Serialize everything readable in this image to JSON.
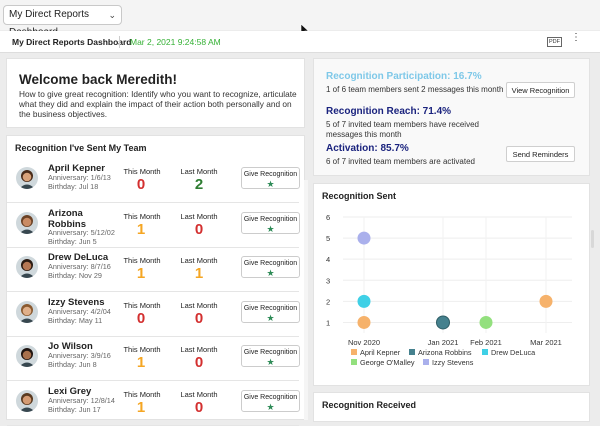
{
  "topbar": {
    "dashboard_select": "My Direct Reports Dashboard"
  },
  "subbar": {
    "title": "My Direct Reports Dashboard",
    "timestamp": "Mar 2, 2021 9:24:58 AM",
    "pdf_label": "PDF"
  },
  "welcome": {
    "title": "Welcome back Meredith!",
    "text": "How to give great recognition: Identify who you want to recognize, articulate what they did and explain the impact of their action both personally and on the business objectives."
  },
  "stats": {
    "participation": {
      "heading": "Recognition Participation: 16.7%",
      "desc": "1 of 6 team members sent 2 messages this month"
    },
    "reach": {
      "heading": "Recognition Reach: 71.4%",
      "desc": "5 of 7 invited team members have received messages this month"
    },
    "activation": {
      "heading": "Activation: 85.7%",
      "desc": "6 of 7 invited team members are activated"
    },
    "view_btn": "View Recognition",
    "remind_btn": "Send Reminders",
    "colors": {
      "participation": "#7ec8e8",
      "reach": "#1a237e",
      "activation": "#1a237e"
    }
  },
  "team": {
    "title": "Recognition I've Sent My Team",
    "this_month_label": "This Month",
    "last_month_label": "Last Month",
    "give_label": "Give Recognition",
    "members": [
      {
        "name": "April Kepner",
        "anniversary": "Anniversary: 1/6/13",
        "birthday": "Birthday: Jul 18",
        "this_month": "0",
        "last_month": "2",
        "this_color": "#d32f2f",
        "last_color": "#2e7d32"
      },
      {
        "name": "Arizona Robbins",
        "anniversary": "Anniversary: 5/12/02",
        "birthday": "Birthday: Jun 5",
        "this_month": "1",
        "last_month": "0",
        "this_color": "#f5a623",
        "last_color": "#d32f2f"
      },
      {
        "name": "Drew DeLuca",
        "anniversary": "Anniversary: 8/7/16",
        "birthday": "Birthday: Nov 29",
        "this_month": "1",
        "last_month": "1",
        "this_color": "#f5a623",
        "last_color": "#f5a623"
      },
      {
        "name": "Izzy Stevens",
        "anniversary": "Anniversary: 4/2/04",
        "birthday": "Birthday: May 11",
        "this_month": "0",
        "last_month": "0",
        "this_color": "#d32f2f",
        "last_color": "#d32f2f"
      },
      {
        "name": "Jo Wilson",
        "anniversary": "Anniversary: 3/9/16",
        "birthday": "Birthday: Jun 8",
        "this_month": "1",
        "last_month": "0",
        "this_color": "#f5a623",
        "last_color": "#d32f2f"
      },
      {
        "name": "Lexi Grey",
        "anniversary": "Anniversary: 12/8/14",
        "birthday": "Birthday: Jun 17",
        "this_month": "1",
        "last_month": "0",
        "this_color": "#f5a623",
        "last_color": "#d32f2f"
      }
    ]
  },
  "received": {
    "title": "Recognition Received"
  },
  "chart_data": {
    "type": "scatter",
    "title": "Recognition Sent",
    "xlabel": "",
    "ylabel": "",
    "categories": [
      "Nov 2020",
      "Jan 2021",
      "Feb 2021",
      "Mar 2021"
    ],
    "ylim": [
      0.5,
      6
    ],
    "yticks": [
      1,
      2,
      3,
      4,
      5,
      6
    ],
    "grid": true,
    "legend_position": "bottom",
    "series": [
      {
        "name": "April Kepner",
        "color": "#f6b26b",
        "points": [
          {
            "x": "Nov 2020",
            "y": 1
          },
          {
            "x": "Mar 2021",
            "y": 2
          }
        ]
      },
      {
        "name": "Arizona Robbins",
        "color": "#45818e",
        "points": [
          {
            "x": "Jan 2021",
            "y": 1
          }
        ]
      },
      {
        "name": "Drew DeLuca",
        "color": "#3fd0e6",
        "points": [
          {
            "x": "Nov 2020",
            "y": 2
          }
        ]
      },
      {
        "name": "George O'Malley",
        "color": "#93e07e",
        "points": [
          {
            "x": "Feb 2021",
            "y": 1
          }
        ]
      },
      {
        "name": "Izzy Stevens",
        "color": "#aab0ec",
        "points": [
          {
            "x": "Nov 2020",
            "y": 5
          }
        ]
      }
    ]
  }
}
